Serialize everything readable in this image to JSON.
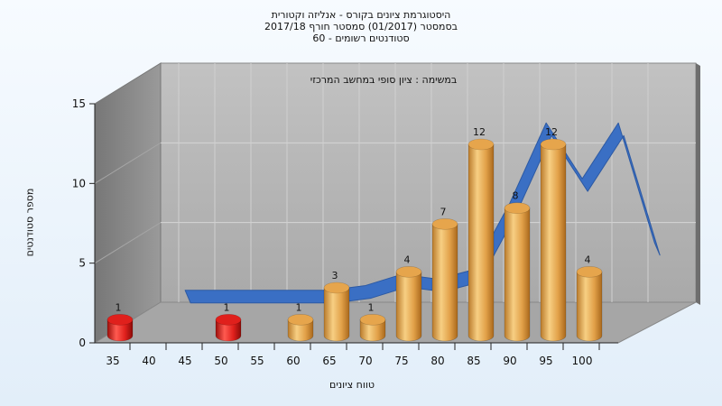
{
  "chart_data": {
    "type": "bar",
    "title_lines": [
      "היסטוגרמת ציונים בקורס - אנליזה וקטורית",
      "בסמסטר  (01/2017)  סמסטר חורף 2017/18",
      "סטודנטים רשומים - 60"
    ],
    "annotation": "במשימה : ציון סופי במחשב המרכזי",
    "xlabel": "טווח ציונים",
    "ylabel": "מספר סטודנטים",
    "x_ticks": [
      "35",
      "40",
      "45",
      "50",
      "55",
      "60",
      "65",
      "70",
      "75",
      "80",
      "85",
      "90",
      "95",
      "100"
    ],
    "y_ticks": [
      "0",
      "5",
      "10",
      "15"
    ],
    "ylim": [
      0,
      15
    ],
    "bars": [
      {
        "x": 35,
        "value": 1,
        "label": "1",
        "color": "#e0201c"
      },
      {
        "x": 50,
        "value": 1,
        "label": "1",
        "color": "#e0201c"
      },
      {
        "x": 60,
        "value": 1,
        "label": "1",
        "color": "#e6a54c"
      },
      {
        "x": 65,
        "value": 3,
        "label": "3",
        "color": "#e6a54c"
      },
      {
        "x": 70,
        "value": 1,
        "label": "1",
        "color": "#e6a54c"
      },
      {
        "x": 75,
        "value": 4,
        "label": "4",
        "color": "#e6a54c"
      },
      {
        "x": 80,
        "value": 7,
        "label": "7",
        "color": "#e6a54c"
      },
      {
        "x": 85,
        "value": 12,
        "label": "12",
        "color": "#e6a54c"
      },
      {
        "x": 90,
        "value": 8,
        "label": "8",
        "color": "#e6a54c"
      },
      {
        "x": 95,
        "value": 12,
        "label": "12",
        "color": "#e6a54c"
      },
      {
        "x": 100,
        "value": 4,
        "label": "4",
        "color": "#e6a54c"
      }
    ],
    "curve": {
      "color": "#3a6fc4",
      "points": [
        {
          "x": 40,
          "y": 1.5
        },
        {
          "x": 45,
          "y": 1.5
        },
        {
          "x": 50,
          "y": 1.5
        },
        {
          "x": 55,
          "y": 1.5
        },
        {
          "x": 60,
          "y": 1.5
        },
        {
          "x": 65,
          "y": 1.8
        },
        {
          "x": 70,
          "y": 2.5
        },
        {
          "x": 75,
          "y": 2.2
        },
        {
          "x": 80,
          "y": 2.8
        },
        {
          "x": 85,
          "y": 7.0
        },
        {
          "x": 90,
          "y": 12.0
        },
        {
          "x": 95,
          "y": 8.5
        },
        {
          "x": 100,
          "y": 12.0
        },
        {
          "x": 105,
          "y": 4.5
        }
      ]
    },
    "grid": true,
    "colors": {
      "bar_low": "#e0201c",
      "bar_main": "#e6a54c",
      "wall_back": "#b4b4b4",
      "wall_side": "#8a8a8a",
      "floor": "#a6a6a6"
    }
  }
}
